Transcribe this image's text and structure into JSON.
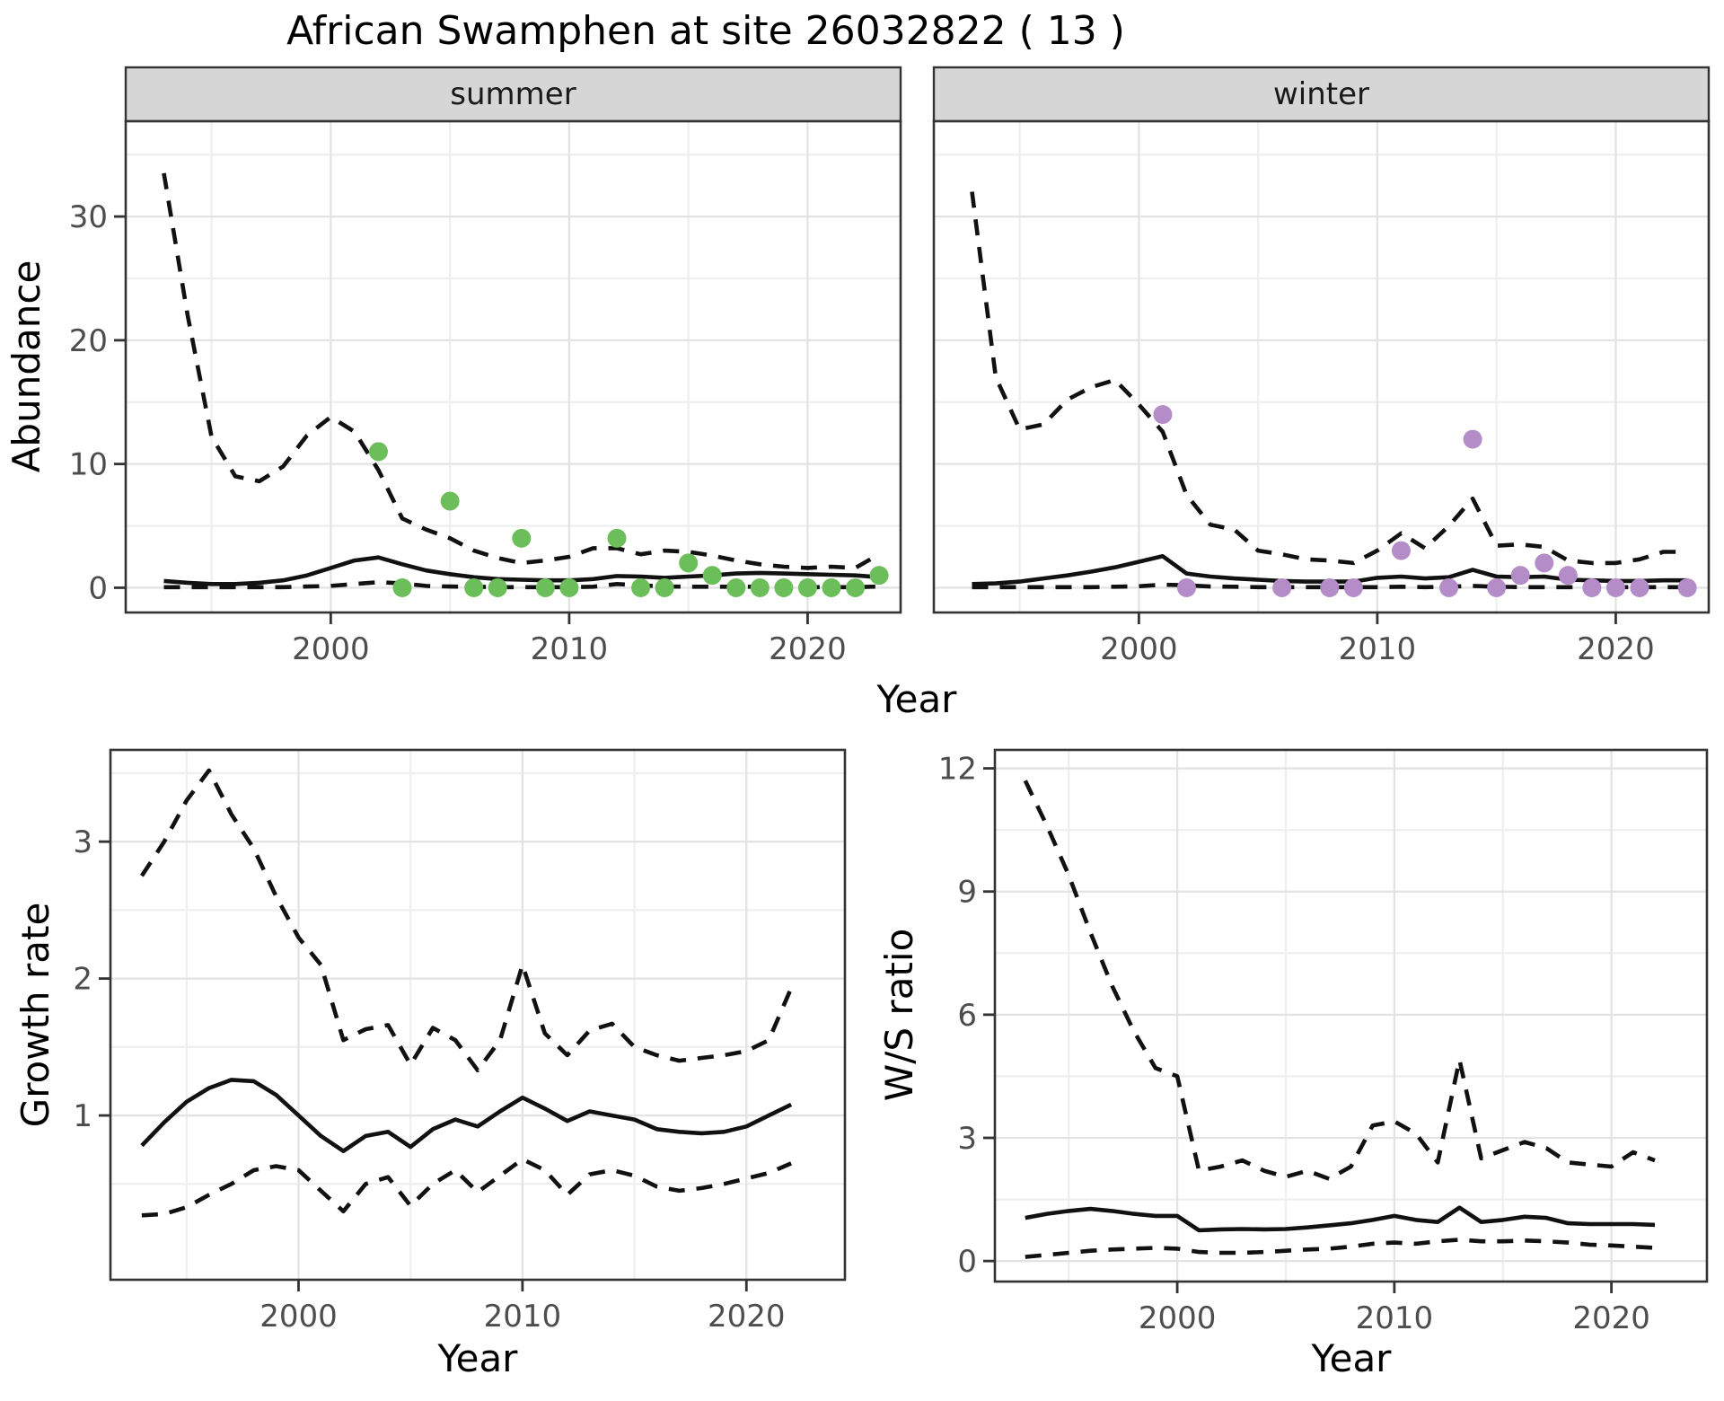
{
  "title": "African Swamphen at site 26032822 ( 13 )",
  "facets": {
    "summer_label": "summer",
    "winter_label": "winter"
  },
  "axes": {
    "abundance_label": "Abundance",
    "growth_label": "Growth rate",
    "ws_label": "W/S ratio",
    "year_label": "Year"
  },
  "colors": {
    "summer_point": "#6CBE5B",
    "winter_point": "#B48CC8",
    "line": "#111111",
    "grid_major": "#E3E3E3",
    "grid_minor": "#EFEFEF",
    "strip_bg": "#D6D6D6",
    "panel_border": "#333333",
    "tick_label": "#4D4D4D",
    "panel_bg": "#FFFFFF"
  },
  "chart_data": [
    {
      "id": "summer",
      "type": "line",
      "title": "summer",
      "xlabel": "Year",
      "ylabel": "Abundance",
      "xlim": [
        1991.4,
        2023.9
      ],
      "ylim": [
        -2,
        37.7
      ],
      "x_ticks": [
        2000,
        2010,
        2020
      ],
      "x_minor": [
        1995,
        2005,
        2015
      ],
      "y_ticks": [
        0,
        10,
        20,
        30
      ],
      "y_minor": [
        5,
        15,
        25,
        35
      ],
      "grid": true,
      "x": [
        1993,
        1994,
        1995,
        1996,
        1997,
        1998,
        1999,
        2000,
        2001,
        2002,
        2003,
        2004,
        2005,
        2006,
        2007,
        2008,
        2009,
        2010,
        2011,
        2012,
        2013,
        2014,
        2015,
        2016,
        2017,
        2018,
        2019,
        2020,
        2021,
        2022,
        2023
      ],
      "series": [
        {
          "name": "mean",
          "style": "solid",
          "values": [
            0.55,
            0.4,
            0.3,
            0.3,
            0.4,
            0.6,
            1.0,
            1.6,
            2.2,
            2.45,
            1.9,
            1.4,
            1.1,
            0.85,
            0.7,
            0.65,
            0.6,
            0.6,
            0.7,
            0.95,
            0.9,
            0.8,
            0.9,
            1.0,
            1.15,
            1.2,
            1.15,
            1.1,
            1.05,
            1.0,
            0.85
          ]
        },
        {
          "name": "upper_ci",
          "style": "dashed",
          "values": [
            33.5,
            22,
            12.2,
            9.0,
            8.6,
            9.8,
            12.3,
            13.8,
            12.6,
            9.5,
            5.6,
            4.7,
            4.0,
            3.0,
            2.4,
            2.0,
            2.2,
            2.5,
            3.2,
            3.2,
            2.7,
            3.0,
            2.9,
            2.6,
            2.2,
            1.9,
            1.7,
            1.6,
            1.7,
            1.6,
            2.7
          ]
        },
        {
          "name": "lower_ci",
          "style": "dashed",
          "values": [
            0.05,
            0.05,
            0.05,
            0.05,
            0.05,
            0.05,
            0.1,
            0.15,
            0.3,
            0.45,
            0.35,
            0.15,
            0.1,
            0.08,
            0.05,
            0.05,
            0.05,
            0.05,
            0.08,
            0.3,
            0.2,
            0.1,
            0.08,
            0.08,
            0.08,
            0.08,
            0.05,
            0.05,
            0.05,
            0.05,
            0.1
          ]
        }
      ],
      "points": [
        [
          2002,
          11
        ],
        [
          2003,
          0
        ],
        [
          2005,
          7
        ],
        [
          2006,
          0
        ],
        [
          2007,
          0
        ],
        [
          2008,
          4
        ],
        [
          2009,
          0
        ],
        [
          2010,
          0
        ],
        [
          2012,
          4
        ],
        [
          2013,
          0
        ],
        [
          2014,
          0
        ],
        [
          2015,
          2
        ],
        [
          2016,
          1
        ],
        [
          2017,
          0
        ],
        [
          2018,
          0
        ],
        [
          2019,
          0
        ],
        [
          2020,
          0
        ],
        [
          2021,
          0
        ],
        [
          2022,
          0
        ],
        [
          2023,
          1
        ]
      ]
    },
    {
      "id": "winter",
      "type": "line",
      "title": "winter",
      "xlabel": "Year",
      "ylabel": "Abundance",
      "xlim": [
        1991.4,
        2023.9
      ],
      "ylim": [
        -2,
        37.7
      ],
      "x_ticks": [
        2000,
        2010,
        2020
      ],
      "x_minor": [
        1995,
        2005,
        2015
      ],
      "y_ticks": [
        0,
        10,
        20,
        30
      ],
      "y_minor": [
        5,
        15,
        25,
        35
      ],
      "grid": true,
      "x": [
        1993,
        1994,
        1995,
        1996,
        1997,
        1998,
        1999,
        2000,
        2001,
        2002,
        2003,
        2004,
        2005,
        2006,
        2007,
        2008,
        2009,
        2010,
        2011,
        2012,
        2013,
        2014,
        2015,
        2016,
        2017,
        2018,
        2019,
        2020,
        2021,
        2022,
        2023
      ],
      "series": [
        {
          "name": "mean",
          "style": "solid",
          "values": [
            0.3,
            0.35,
            0.5,
            0.75,
            1.0,
            1.3,
            1.65,
            2.1,
            2.55,
            1.15,
            0.9,
            0.75,
            0.65,
            0.55,
            0.5,
            0.5,
            0.5,
            0.8,
            0.9,
            0.75,
            0.85,
            1.45,
            0.9,
            0.85,
            0.9,
            0.65,
            0.6,
            0.55,
            0.55,
            0.6,
            0.6
          ]
        },
        {
          "name": "upper_ci",
          "style": "dashed",
          "values": [
            32,
            17,
            12.8,
            13.2,
            15.2,
            16.2,
            16.8,
            14.8,
            12.6,
            7.5,
            5.1,
            4.7,
            3.0,
            2.7,
            2.3,
            2.2,
            2.0,
            3.0,
            4.4,
            3.2,
            5.0,
            7.2,
            3.4,
            3.5,
            3.3,
            2.2,
            2.0,
            2.0,
            2.3,
            2.9,
            2.9
          ]
        },
        {
          "name": "lower_ci",
          "style": "dashed",
          "values": [
            0.05,
            0.05,
            0.05,
            0.05,
            0.05,
            0.05,
            0.08,
            0.12,
            0.25,
            0.2,
            0.1,
            0.08,
            0.05,
            0.05,
            0.05,
            0.05,
            0.05,
            0.05,
            0.08,
            0.05,
            0.08,
            0.15,
            0.08,
            0.05,
            0.05,
            0.05,
            0.05,
            0.05,
            0.05,
            0.05,
            0.05
          ]
        }
      ],
      "points": [
        [
          2001,
          14
        ],
        [
          2002,
          0
        ],
        [
          2006,
          0
        ],
        [
          2008,
          0
        ],
        [
          2009,
          0
        ],
        [
          2011,
          3
        ],
        [
          2013,
          0
        ],
        [
          2014,
          12
        ],
        [
          2015,
          0
        ],
        [
          2016,
          1
        ],
        [
          2017,
          2
        ],
        [
          2018,
          1
        ],
        [
          2019,
          0
        ],
        [
          2020,
          0
        ],
        [
          2021,
          0
        ],
        [
          2023,
          0
        ]
      ]
    },
    {
      "id": "growth",
      "type": "line",
      "title": "Growth rate",
      "xlabel": "Year",
      "ylabel": "Growth rate",
      "xlim": [
        1991.6,
        2024.4
      ],
      "ylim": [
        -0.2,
        3.67
      ],
      "x_ticks": [
        2000,
        2010,
        2020
      ],
      "x_minor": [
        1995,
        2005,
        2015
      ],
      "y_ticks": [
        1,
        2,
        3
      ],
      "y_minor": [
        0.5,
        1.5,
        2.5,
        3.5
      ],
      "grid": true,
      "x": [
        1993,
        1994,
        1995,
        1996,
        1997,
        1998,
        1999,
        2000,
        2001,
        2002,
        2003,
        2004,
        2005,
        2006,
        2007,
        2008,
        2009,
        2010,
        2011,
        2012,
        2013,
        2014,
        2015,
        2016,
        2017,
        2018,
        2019,
        2020,
        2021,
        2022
      ],
      "series": [
        {
          "name": "mean",
          "style": "solid",
          "values": [
            0.78,
            0.95,
            1.1,
            1.2,
            1.26,
            1.25,
            1.15,
            1.0,
            0.85,
            0.74,
            0.85,
            0.88,
            0.77,
            0.9,
            0.97,
            0.92,
            1.03,
            1.13,
            1.05,
            0.96,
            1.03,
            1.0,
            0.97,
            0.9,
            0.88,
            0.87,
            0.88,
            0.92,
            1.0,
            1.08
          ]
        },
        {
          "name": "upper_ci",
          "style": "dashed",
          "values": [
            2.75,
            3.0,
            3.3,
            3.52,
            3.2,
            2.95,
            2.6,
            2.3,
            2.1,
            1.55,
            1.63,
            1.66,
            1.37,
            1.64,
            1.55,
            1.33,
            1.55,
            2.1,
            1.6,
            1.44,
            1.62,
            1.67,
            1.5,
            1.44,
            1.4,
            1.42,
            1.44,
            1.47,
            1.55,
            1.93
          ]
        },
        {
          "name": "lower_ci",
          "style": "dashed",
          "values": [
            0.27,
            0.28,
            0.33,
            0.42,
            0.5,
            0.6,
            0.63,
            0.6,
            0.45,
            0.3,
            0.5,
            0.55,
            0.34,
            0.5,
            0.6,
            0.44,
            0.56,
            0.68,
            0.6,
            0.42,
            0.57,
            0.6,
            0.56,
            0.48,
            0.45,
            0.47,
            0.5,
            0.54,
            0.58,
            0.65
          ]
        }
      ],
      "points": []
    },
    {
      "id": "ws",
      "type": "line",
      "title": "W/S ratio",
      "xlabel": "Year",
      "ylabel": "W/S ratio",
      "xlim": [
        1991.6,
        2024.4
      ],
      "ylim": [
        -0.5,
        12.45
      ],
      "x_ticks": [
        2000,
        2010,
        2020
      ],
      "x_minor": [
        1995,
        2005,
        2015
      ],
      "y_ticks": [
        0,
        3,
        6,
        9,
        12
      ],
      "y_minor": [
        1.5,
        4.5,
        7.5,
        10.5
      ],
      "grid": true,
      "x": [
        1993,
        1994,
        1995,
        1996,
        1997,
        1998,
        1999,
        2000,
        2001,
        2002,
        2003,
        2004,
        2005,
        2006,
        2007,
        2008,
        2009,
        2010,
        2011,
        2012,
        2013,
        2014,
        2015,
        2016,
        2017,
        2018,
        2019,
        2020,
        2021,
        2022
      ],
      "series": [
        {
          "name": "mean",
          "style": "solid",
          "values": [
            1.05,
            1.15,
            1.22,
            1.27,
            1.22,
            1.15,
            1.1,
            1.1,
            0.75,
            0.77,
            0.78,
            0.77,
            0.78,
            0.82,
            0.87,
            0.92,
            1.0,
            1.1,
            1.0,
            0.95,
            1.3,
            0.95,
            1.0,
            1.08,
            1.05,
            0.92,
            0.9,
            0.9,
            0.9,
            0.88
          ]
        },
        {
          "name": "upper_ci",
          "style": "dashed",
          "values": [
            11.7,
            10.6,
            9.4,
            8.0,
            6.7,
            5.6,
            4.7,
            4.5,
            2.2,
            2.3,
            2.45,
            2.2,
            2.05,
            2.2,
            2.0,
            2.3,
            3.3,
            3.4,
            3.1,
            2.4,
            4.9,
            2.5,
            2.7,
            2.9,
            2.75,
            2.4,
            2.35,
            2.3,
            2.65,
            2.45
          ]
        },
        {
          "name": "lower_ci",
          "style": "dashed",
          "values": [
            0.1,
            0.15,
            0.2,
            0.25,
            0.28,
            0.3,
            0.32,
            0.3,
            0.22,
            0.2,
            0.2,
            0.22,
            0.25,
            0.28,
            0.3,
            0.35,
            0.42,
            0.45,
            0.42,
            0.48,
            0.52,
            0.48,
            0.48,
            0.5,
            0.48,
            0.45,
            0.4,
            0.38,
            0.35,
            0.32
          ]
        }
      ],
      "points": []
    }
  ]
}
